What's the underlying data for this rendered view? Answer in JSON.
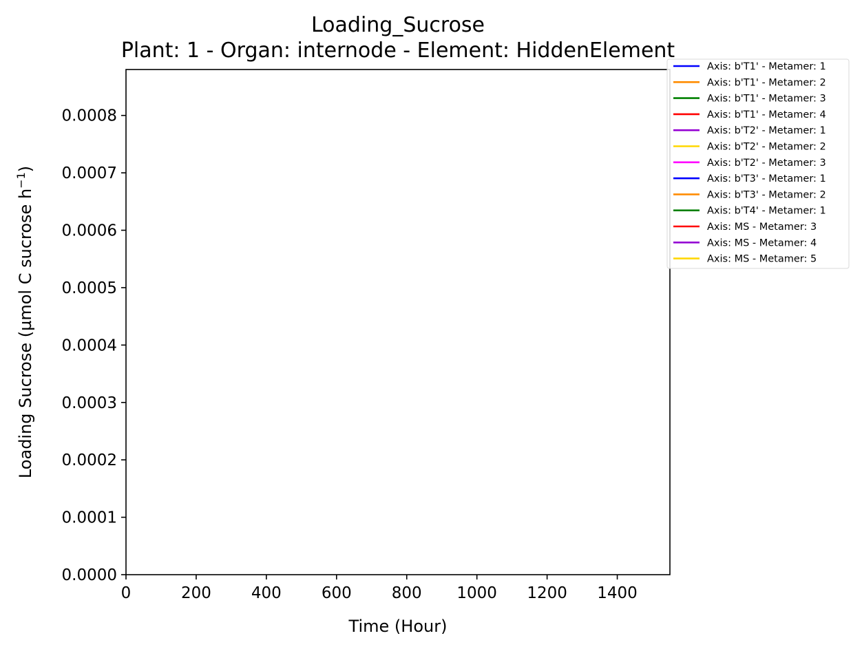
{
  "chart_data": {
    "type": "line",
    "title": "Loading_Sucrose",
    "subtitle": "Plant: 1 - Organ: internode - Element: HiddenElement",
    "xlabel": "Time (Hour)",
    "ylabel": "Loading Sucrose (µmol C sucrose h",
    "ylabel_sup": "−1",
    "ylabel_close": ")",
    "xlim": [
      0,
      1550
    ],
    "ylim": [
      0,
      0.00088
    ],
    "x_ticks": [
      0,
      200,
      400,
      600,
      800,
      1000,
      1200,
      1400
    ],
    "x_tick_labels": [
      "0",
      "200",
      "400",
      "600",
      "800",
      "1000",
      "1200",
      "1400"
    ],
    "y_ticks": [
      0,
      0.0001,
      0.0002,
      0.0003,
      0.0004,
      0.0005,
      0.0006,
      0.0007,
      0.0008
    ],
    "y_tick_labels": [
      "0.0000",
      "0.0001",
      "0.0002",
      "0.0003",
      "0.0004",
      "0.0005",
      "0.0006",
      "0.0007",
      "0.0008"
    ],
    "grid": false,
    "legend_position": "outside-right",
    "series": [
      {
        "name": "Axis: b'T1' - Metamer: 1",
        "color": "#0000ff",
        "x": [],
        "values": []
      },
      {
        "name": "Axis: b'T1' - Metamer: 2",
        "color": "#ff8c00",
        "x": [],
        "values": []
      },
      {
        "name": "Axis: b'T1' - Metamer: 3",
        "color": "#008000",
        "x": [],
        "values": []
      },
      {
        "name": "Axis: b'T1' - Metamer: 4",
        "color": "#ff0000",
        "x": [],
        "values": []
      },
      {
        "name": "Axis: b'T2' - Metamer: 1",
        "color": "#9400d3",
        "x": [],
        "values": []
      },
      {
        "name": "Axis: b'T2' - Metamer: 2",
        "color": "#ffd700",
        "x": [],
        "values": []
      },
      {
        "name": "Axis: b'T2' - Metamer: 3",
        "color": "#ff00ff",
        "x": [],
        "values": []
      },
      {
        "name": "Axis: b'T3' - Metamer: 1",
        "color": "#0000ff",
        "x": [],
        "values": []
      },
      {
        "name": "Axis: b'T3' - Metamer: 2",
        "color": "#ff8c00",
        "x": [],
        "values": []
      },
      {
        "name": "Axis: b'T4' - Metamer: 1",
        "color": "#008000",
        "x": [],
        "values": []
      },
      {
        "name": "Axis: MS - Metamer: 3",
        "color": "#ff0000",
        "x": [],
        "values": []
      },
      {
        "name": "Axis: MS - Metamer: 4",
        "color": "#9400d3",
        "x": [],
        "values": []
      },
      {
        "name": "Axis: MS - Metamer: 5",
        "color": "#ffd700",
        "x": [],
        "values": []
      }
    ]
  }
}
